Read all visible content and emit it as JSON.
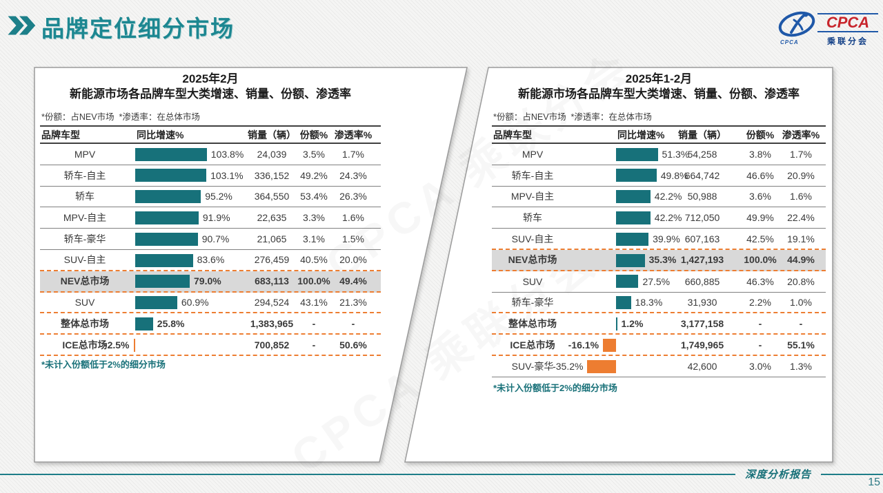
{
  "page": {
    "title": "品牌定位细分市场",
    "watermark": "CPCA 乘联分会",
    "footer_text": "深度分析报告",
    "page_number": "15"
  },
  "logo": {
    "acronym": "CPCA",
    "chinese": "乘联分会",
    "emblem_sub": "CPCA"
  },
  "colors": {
    "title_teal": "#1c8791",
    "bar_teal": "#17717a",
    "bar_orange": "#ed7d31",
    "highlight_gray": "#d9d9d9",
    "footer_teal": "#1d7d88"
  },
  "chart_data": [
    {
      "type": "bar",
      "panel_title_line1": "2025年2月",
      "panel_title_line2": "新能源市场各品牌车型大类增速、销量、份额、渗透率",
      "note": "*份额：占NEV市场  *渗透率：在总体市场",
      "footnote": "*未计入份额低于2%的细分市场",
      "columns": [
        "品牌车型",
        "同比增速%",
        "销量（辆）",
        "份额%",
        "渗透率%"
      ],
      "bar_color_positive": "#17717a",
      "bar_color_negative": "#ed7d31",
      "axis_unit": "%",
      "rows": [
        {
          "label": "MPV",
          "growth_pct": 103.8,
          "growth_label": "103.8%",
          "sales": "24,039",
          "share": "3.5%",
          "penetration": "1.7%",
          "emphasis": false,
          "highlight": false,
          "separator": "solid"
        },
        {
          "label": "轿车-自主",
          "growth_pct": 103.1,
          "growth_label": "103.1%",
          "sales": "336,152",
          "share": "49.2%",
          "penetration": "24.3%",
          "emphasis": false,
          "highlight": false,
          "separator": "solid"
        },
        {
          "label": "轿车",
          "growth_pct": 95.2,
          "growth_label": "95.2%",
          "sales": "364,550",
          "share": "53.4%",
          "penetration": "26.3%",
          "emphasis": false,
          "highlight": false,
          "separator": "solid"
        },
        {
          "label": "MPV-自主",
          "growth_pct": 91.9,
          "growth_label": "91.9%",
          "sales": "22,635",
          "share": "3.3%",
          "penetration": "1.6%",
          "emphasis": false,
          "highlight": false,
          "separator": "solid"
        },
        {
          "label": "轿车-豪华",
          "growth_pct": 90.7,
          "growth_label": "90.7%",
          "sales": "21,065",
          "share": "3.1%",
          "penetration": "1.5%",
          "emphasis": false,
          "highlight": false,
          "separator": "solid"
        },
        {
          "label": "SUV-自主",
          "growth_pct": 83.6,
          "growth_label": "83.6%",
          "sales": "276,459",
          "share": "40.5%",
          "penetration": "20.0%",
          "emphasis": false,
          "highlight": false,
          "separator": "dashed"
        },
        {
          "label": "NEV总市场",
          "growth_pct": 79.0,
          "growth_label": "79.0%",
          "sales": "683,113",
          "share": "100.0%",
          "penetration": "49.4%",
          "emphasis": true,
          "highlight": true,
          "separator": "dashed"
        },
        {
          "label": "SUV",
          "growth_pct": 60.9,
          "growth_label": "60.9%",
          "sales": "294,524",
          "share": "43.1%",
          "penetration": "21.3%",
          "emphasis": false,
          "highlight": false,
          "separator": "dashed"
        },
        {
          "label": "整体总市场",
          "growth_pct": 25.8,
          "growth_label": "25.8%",
          "sales": "1,383,965",
          "share": "-",
          "penetration": "-",
          "emphasis": true,
          "highlight": false,
          "separator": "dashed"
        },
        {
          "label": "ICE总市场",
          "growth_pct": -2.5,
          "growth_label": "-2.5%",
          "sales": "700,852",
          "share": "-",
          "penetration": "50.6%",
          "emphasis": true,
          "highlight": false,
          "separator": "dashed"
        }
      ]
    },
    {
      "type": "bar",
      "panel_title_line1": "2025年1-2月",
      "panel_title_line2": "新能源市场各品牌车型大类增速、销量、份额、渗透率",
      "note": "*份额：占NEV市场  *渗透率：在总体市场",
      "footnote": "*未计入份额低于2%的细分市场",
      "columns": [
        "品牌车型",
        "同比增速%",
        "销量（辆）",
        "份额%",
        "渗透率%"
      ],
      "bar_color_positive": "#17717a",
      "bar_color_negative": "#ed7d31",
      "axis_unit": "%",
      "rows": [
        {
          "label": "MPV",
          "growth_pct": 51.3,
          "growth_label": "51.3%",
          "sales": "54,258",
          "share": "3.8%",
          "penetration": "1.7%",
          "emphasis": false,
          "highlight": false,
          "separator": "solid"
        },
        {
          "label": "轿车-自主",
          "growth_pct": 49.8,
          "growth_label": "49.8%",
          "sales": "664,742",
          "share": "46.6%",
          "penetration": "20.9%",
          "emphasis": false,
          "highlight": false,
          "separator": "solid"
        },
        {
          "label": "MPV-自主",
          "growth_pct": 42.2,
          "growth_label": "42.2%",
          "sales": "50,988",
          "share": "3.6%",
          "penetration": "1.6%",
          "emphasis": false,
          "highlight": false,
          "separator": "solid"
        },
        {
          "label": "轿车",
          "growth_pct": 42.2,
          "growth_label": "42.2%",
          "sales": "712,050",
          "share": "49.9%",
          "penetration": "22.4%",
          "emphasis": false,
          "highlight": false,
          "separator": "solid"
        },
        {
          "label": "SUV-自主",
          "growth_pct": 39.9,
          "growth_label": "39.9%",
          "sales": "607,163",
          "share": "42.5%",
          "penetration": "19.1%",
          "emphasis": false,
          "highlight": false,
          "separator": "dashed"
        },
        {
          "label": "NEV总市场",
          "growth_pct": 35.3,
          "growth_label": "35.3%",
          "sales": "1,427,193",
          "share": "100.0%",
          "penetration": "44.9%",
          "emphasis": true,
          "highlight": true,
          "separator": "dashed"
        },
        {
          "label": "SUV",
          "growth_pct": 27.5,
          "growth_label": "27.5%",
          "sales": "660,885",
          "share": "46.3%",
          "penetration": "20.8%",
          "emphasis": false,
          "highlight": false,
          "separator": "solid"
        },
        {
          "label": "轿车-豪华",
          "growth_pct": 18.3,
          "growth_label": "18.3%",
          "sales": "31,930",
          "share": "2.2%",
          "penetration": "1.0%",
          "emphasis": false,
          "highlight": false,
          "separator": "dashed"
        },
        {
          "label": "整体总市场",
          "growth_pct": 1.2,
          "growth_label": "1.2%",
          "sales": "3,177,158",
          "share": "-",
          "penetration": "-",
          "emphasis": true,
          "highlight": false,
          "separator": "dashed"
        },
        {
          "label": "ICE总市场",
          "growth_pct": -16.1,
          "growth_label": "-16.1%",
          "sales": "1,749,965",
          "share": "-",
          "penetration": "55.1%",
          "emphasis": true,
          "highlight": false,
          "separator": "dashed"
        },
        {
          "label": "SUV-豪华",
          "growth_pct": -35.2,
          "growth_label": "-35.2%",
          "sales": "42,600",
          "share": "3.0%",
          "penetration": "1.3%",
          "emphasis": false,
          "highlight": false,
          "separator": "solid"
        }
      ]
    }
  ]
}
